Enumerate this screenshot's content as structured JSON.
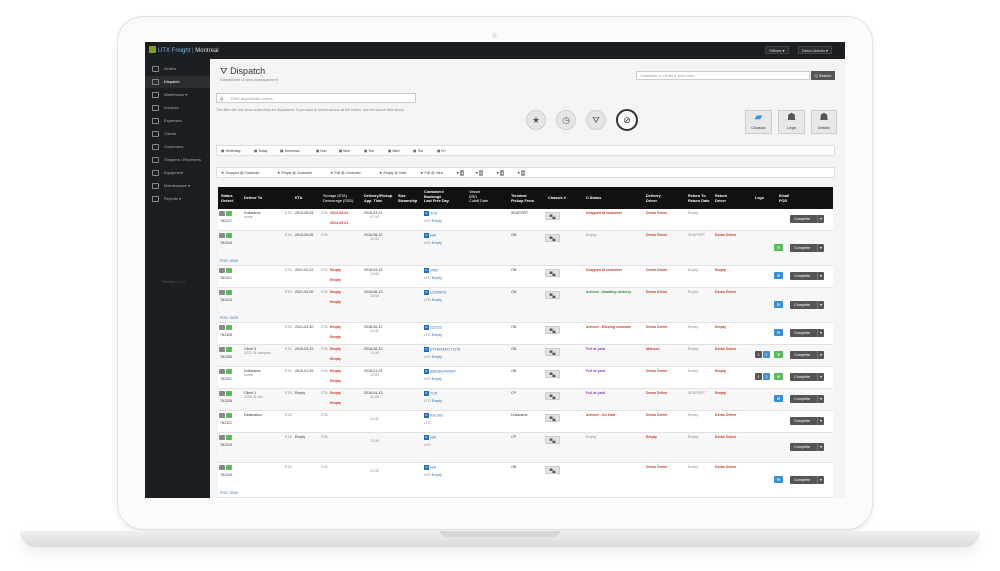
{
  "app": {
    "brand": "UTX Freight",
    "separator": "|",
    "location": "Montreal",
    "offices_button": "Offices ▾",
    "user_button": "Demo Admin ▾"
  },
  "sidebar": {
    "items": [
      {
        "label": "Orders"
      },
      {
        "label": "Dispatch"
      },
      {
        "label": "Warehouse ▾"
      },
      {
        "label": "Invoices"
      },
      {
        "label": "Expenses"
      },
      {
        "label": "Clients"
      },
      {
        "label": "Customers"
      },
      {
        "label": "Shippers / Receivers"
      },
      {
        "label": "Equipment"
      },
      {
        "label": "Maintenance ▾"
      },
      {
        "label": "Reports ▾"
      }
    ],
    "footer": "Privacy v 1.0"
  },
  "header": {
    "title": "Dispatch",
    "subtitle": "Dispatched Orders Management",
    "search_placeholder": "Container #, Order # and more",
    "search_button": "Q Search",
    "filter_placeholder": "Filter dispatched orders",
    "note": "This filter will only show orders that are dispatched. If you want to search across all the orders, use the search field above."
  },
  "quick_buttons": [
    {
      "icon": "★",
      "name": "star-icon"
    },
    {
      "icon": "◷",
      "name": "clock-icon"
    },
    {
      "icon": "⛛",
      "name": "road-icon"
    },
    {
      "icon": "⊘",
      "name": "ban-icon"
    }
  ],
  "actions": [
    {
      "label": "Chassis",
      "icon": "▰"
    },
    {
      "label": "Legs",
      "icon": "☗"
    },
    {
      "label": "Details",
      "icon": "☗"
    }
  ],
  "date_filters": [
    "Yesterday",
    "Today",
    "Tomorrow",
    "Sun",
    "Mon",
    "Tue",
    "Wed",
    "Thu",
    "Fri"
  ],
  "status_filters": [
    {
      "label": "Dropped @ Customer"
    },
    {
      "label": "Empty @ Customer"
    },
    {
      "label": "Full @ Customer"
    },
    {
      "label": "Empty @ Yard"
    },
    {
      "label": "Full @ Yard"
    },
    {
      "label": "",
      "badge": "2"
    },
    {
      "label": "",
      "badge": "4"
    },
    {
      "label": "",
      "badge": "2"
    },
    {
      "label": "",
      "badge": "0"
    }
  ],
  "table": {
    "headers": {
      "status": "Status\nOrder#",
      "deliver_to": "Deliver To",
      "eta": "ETA",
      "storage": "Storage (ETA)\nDemurrage (SSD)",
      "delivery_pickup": "Delivery/Pickup\nApp. Time",
      "size": "Size\nSteamship",
      "container": "Container#\nBooking#\nLast Free Day",
      "vessel": "Vessel\nERD\nCutoff Date",
      "terminal": "Terminal\nPickup From",
      "chassis": "Chassis #",
      "c_status": "C.Status",
      "delivery_driver": "Delivery\nDriver",
      "return_to": "Return To\nReturn Date",
      "return_driver": "Return\nDriver",
      "legs": "Legs",
      "email_pod": "Email\nPOD"
    },
    "rows": [
      {
        "order": "781217",
        "deliver_to": "Dollarama",
        "deliver_sub": "some",
        "eta": "2014-05-04",
        "storage_eta": "2014-05-02",
        "storage_ssd": "2014-05-01",
        "appt": "2018-03-21",
        "appt_time": "07:03",
        "size": "",
        "container": "TCD",
        "booking": "Empty",
        "terminal": "SEAPORT",
        "status": "Dropped at customer",
        "status_class": "red",
        "driver": "Demo Driver",
        "return_to": "Empty",
        "return_driver": "",
        "mail": "",
        "extra": ""
      },
      {
        "order": "781315",
        "deliver_to": "",
        "deliver_sub": "",
        "eta": "2014-05-05",
        "storage_eta": "",
        "storage_ssd": "",
        "appt": "2018-06-12",
        "appt_time": "12:00",
        "size": "",
        "container": "N/A",
        "booking": "Empty",
        "terminal": "ON",
        "status": "Empty",
        "status_class": "grey",
        "driver": "Demo Driver",
        "return_to": "SEAPORT",
        "return_driver": "Demo Driver",
        "mail": "g",
        "extra": "POD: 5339"
      },
      {
        "order": "781321",
        "deliver_to": "",
        "deliver_sub": "",
        "eta": "2021-02-22",
        "storage_eta": "Empty",
        "storage_ssd": "Empty",
        "appt": "2018-04-13",
        "appt_time": "12:00",
        "size": "",
        "container": "1402",
        "booking": "Empty",
        "terminal": "ON",
        "status": "Dropped at customer",
        "status_class": "red",
        "driver": "Demo Driver",
        "return_to": "Empty",
        "return_driver": "Empty",
        "mail": "b",
        "extra": ""
      },
      {
        "order": "781313",
        "deliver_to": "",
        "deliver_sub": "",
        "eta": "2021-02-09",
        "storage_eta": "Empty",
        "storage_ssd": "Empty",
        "appt": "2018-06-13",
        "appt_time": "12:00",
        "size": "",
        "container": "12345678",
        "booking": "Empty",
        "terminal": "ON",
        "status": "Arrived - Awaiting delivery",
        "status_class": "green",
        "driver": "Demo Driver",
        "return_to": "Empty",
        "return_driver": "Demo Driver",
        "mail": "b",
        "extra": "POD: 3329"
      },
      {
        "order": "781326",
        "deliver_to": "",
        "deliver_sub": "",
        "eta": "2021-03-30",
        "storage_eta": "Empty",
        "storage_ssd": "Empty",
        "appt": "2018-06-12",
        "appt_time": "12:00",
        "size": "",
        "container": "123123",
        "booking": "Empty",
        "terminal": "ON",
        "status": "Arrived - Missing customs",
        "status_class": "red",
        "driver": "Demo Driver",
        "return_to": "Empty",
        "return_driver": "Empty",
        "mail": "b",
        "extra": ""
      },
      {
        "order": "781283",
        "deliver_to": "Client 3",
        "deliver_sub": "1222 St Jacques",
        "eta": "2019-03-19",
        "storage_eta": "Empty",
        "storage_ssd": "Empty",
        "appt": "2018-06-12",
        "appt_time": "12:00",
        "size": "",
        "container": "ETFHI4342271578",
        "booking": "Empty",
        "terminal": "ON",
        "status": "Full at yard",
        "status_class": "purple",
        "driver": "Muhsen",
        "return_to": "Empty",
        "return_driver": "Demo Driver",
        "mail": "g",
        "extra": ""
      },
      {
        "order": "781321",
        "deliver_to": "Dollarama",
        "deliver_sub": "some",
        "eta": "2019-01-29",
        "storage_eta": "Empty",
        "storage_ssd": "Empty",
        "appt": "2018-01-23",
        "appt_time": "12:00",
        "size": "",
        "container": "8991891402847",
        "booking": "Empty",
        "terminal": "ON",
        "status": "Full at yard",
        "status_class": "purple",
        "driver": "Demo Driver",
        "return_to": "Empty",
        "return_driver": "Empty",
        "mail": "g",
        "extra": ""
      },
      {
        "order": "781328",
        "deliver_to": "Client 1",
        "deliver_sub": "1256 St Jax",
        "eta": "Empty",
        "storage_eta": "Empty",
        "storage_ssd": "Empty",
        "appt": "2018-04-13",
        "appt_time": "12:00",
        "size": "",
        "container": "TCD",
        "booking": "Empty",
        "terminal": "CP",
        "status": "Full at yard",
        "status_class": "purple",
        "driver": "Demo Driver",
        "return_to": "SEAPORT",
        "return_driver": "Empty",
        "mail": "b",
        "extra": ""
      },
      {
        "order": "781321",
        "deliver_to": "Destination",
        "deliver_sub": "",
        "eta": "",
        "storage_eta": "",
        "storage_ssd": "",
        "appt": "",
        "appt_time": "12:00",
        "size": "",
        "container": "Kee 891",
        "booking": "",
        "terminal": "Dollarama",
        "status": "Arrived - On hold",
        "status_class": "red",
        "driver": "Demo Driver",
        "return_to": "Empty",
        "return_driver": "Demo Driver",
        "mail": "",
        "extra": ""
      },
      {
        "order": "781319",
        "deliver_to": "",
        "deliver_sub": "",
        "eta": "Empty",
        "storage_eta": "",
        "storage_ssd": "",
        "appt": "",
        "appt_time": "12:00",
        "size": "",
        "container": "N/A",
        "booking": "",
        "terminal": "CP",
        "status": "Empty",
        "status_class": "grey",
        "driver": "Empty",
        "return_to": "Empty",
        "return_driver": "Demo Driver",
        "mail": "",
        "extra": ""
      },
      {
        "order": "781316",
        "deliver_to": "",
        "deliver_sub": "",
        "eta": "",
        "storage_eta": "",
        "storage_ssd": "",
        "appt": "",
        "appt_time": "12:00",
        "size": "",
        "container": "N/A",
        "booking": "Empty",
        "terminal": "ON",
        "status": "",
        "status_class": "grey",
        "driver": "Demo Driver",
        "return_to": "Empty",
        "return_driver": "Demo Driver",
        "mail": "b",
        "extra": "POD: 3339"
      }
    ],
    "complete_label": "Complete"
  }
}
